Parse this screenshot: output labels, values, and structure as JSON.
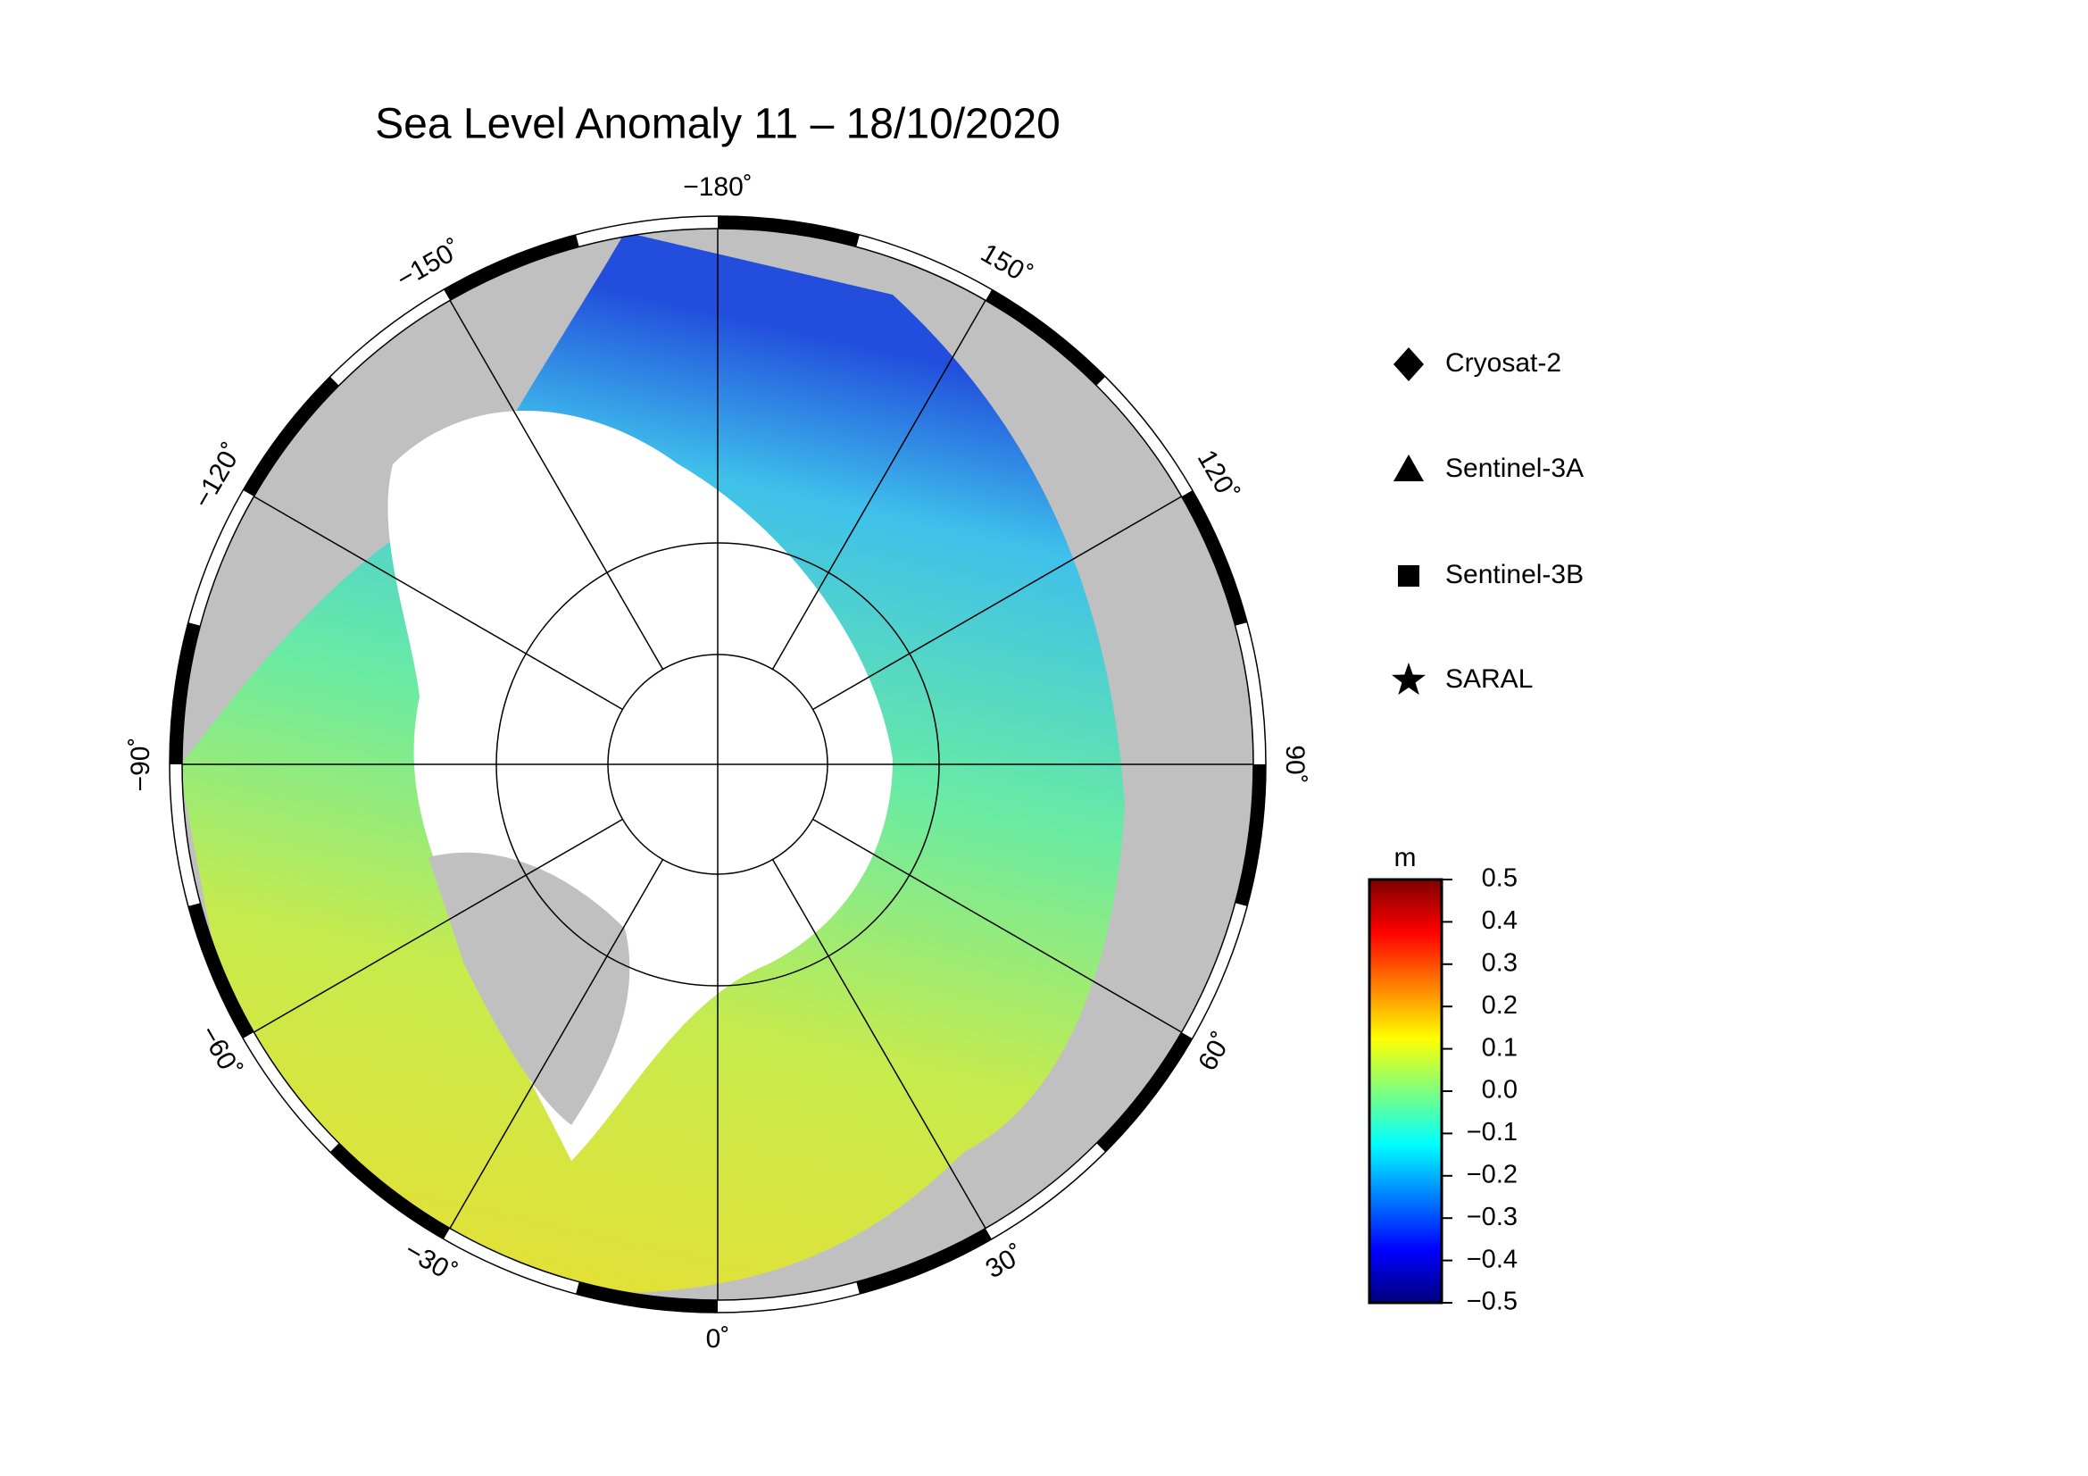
{
  "map": {
    "title": "Sea Level Anomaly 11 – 18/10/2020",
    "longitude_labels": [
      {
        "value": -180,
        "label": "−180˚"
      },
      {
        "value": 150,
        "label": "150˚"
      },
      {
        "value": 120,
        "label": "120˚"
      },
      {
        "value": 90,
        "label": "90˚"
      },
      {
        "value": 60,
        "label": "60˚"
      },
      {
        "value": 30,
        "label": "30˚"
      },
      {
        "value": 0,
        "label": "0˚"
      },
      {
        "value": -30,
        "label": "−30˚"
      },
      {
        "value": -60,
        "label": "−60˚"
      },
      {
        "value": -90,
        "label": "−90˚"
      },
      {
        "value": -120,
        "label": "−120˚"
      },
      {
        "value": -150,
        "label": "−150˚"
      }
    ],
    "legend": [
      "Cryosat-2",
      "Sentinel-3A",
      "Sentinel-3B",
      "SARAL"
    ],
    "colorbar": {
      "unit": "m",
      "clim": [
        -0.5,
        0.5
      ],
      "ticks": [
        0.5,
        0.4,
        0.3,
        0.2,
        0.1,
        {
          "value": 0,
          "label": "0.0"
        },
        {
          "value": -0.1,
          "label": "−0.1"
        },
        {
          "value": -0.2,
          "label": "−0.2"
        },
        {
          "value": -0.3,
          "label": "−0.3"
        },
        {
          "value": -0.4,
          "label": "−0.4"
        },
        {
          "value": -0.5,
          "label": "−0.5"
        }
      ]
    }
  }
}
